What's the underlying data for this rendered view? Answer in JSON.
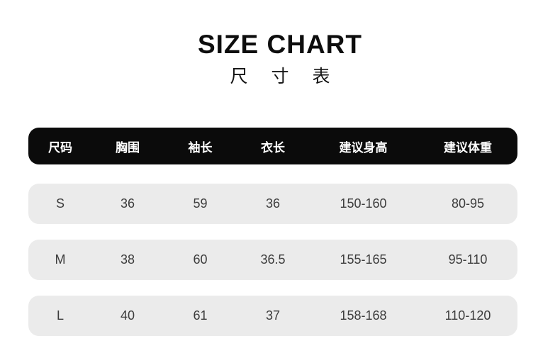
{
  "title": "SIZE CHART",
  "subtitle": "尺 寸 表",
  "colors": {
    "header_bg": "#0b0b0b",
    "header_text": "#ffffff",
    "row_bg": "#ebebeb",
    "row_text": "#3c3c3c",
    "page_bg": "#ffffff"
  },
  "chart_data": {
    "type": "table",
    "title": "SIZE CHART",
    "subtitle_cn": "尺寸表",
    "columns": [
      "尺码",
      "胸围",
      "袖长",
      "衣长",
      "建议身高",
      "建议体重"
    ],
    "rows": [
      [
        "S",
        "36",
        "59",
        "36",
        "150-160",
        "80-95"
      ],
      [
        "M",
        "38",
        "60",
        "36.5",
        "155-165",
        "95-110"
      ],
      [
        "L",
        "40",
        "61",
        "37",
        "158-168",
        "110-120"
      ]
    ]
  }
}
